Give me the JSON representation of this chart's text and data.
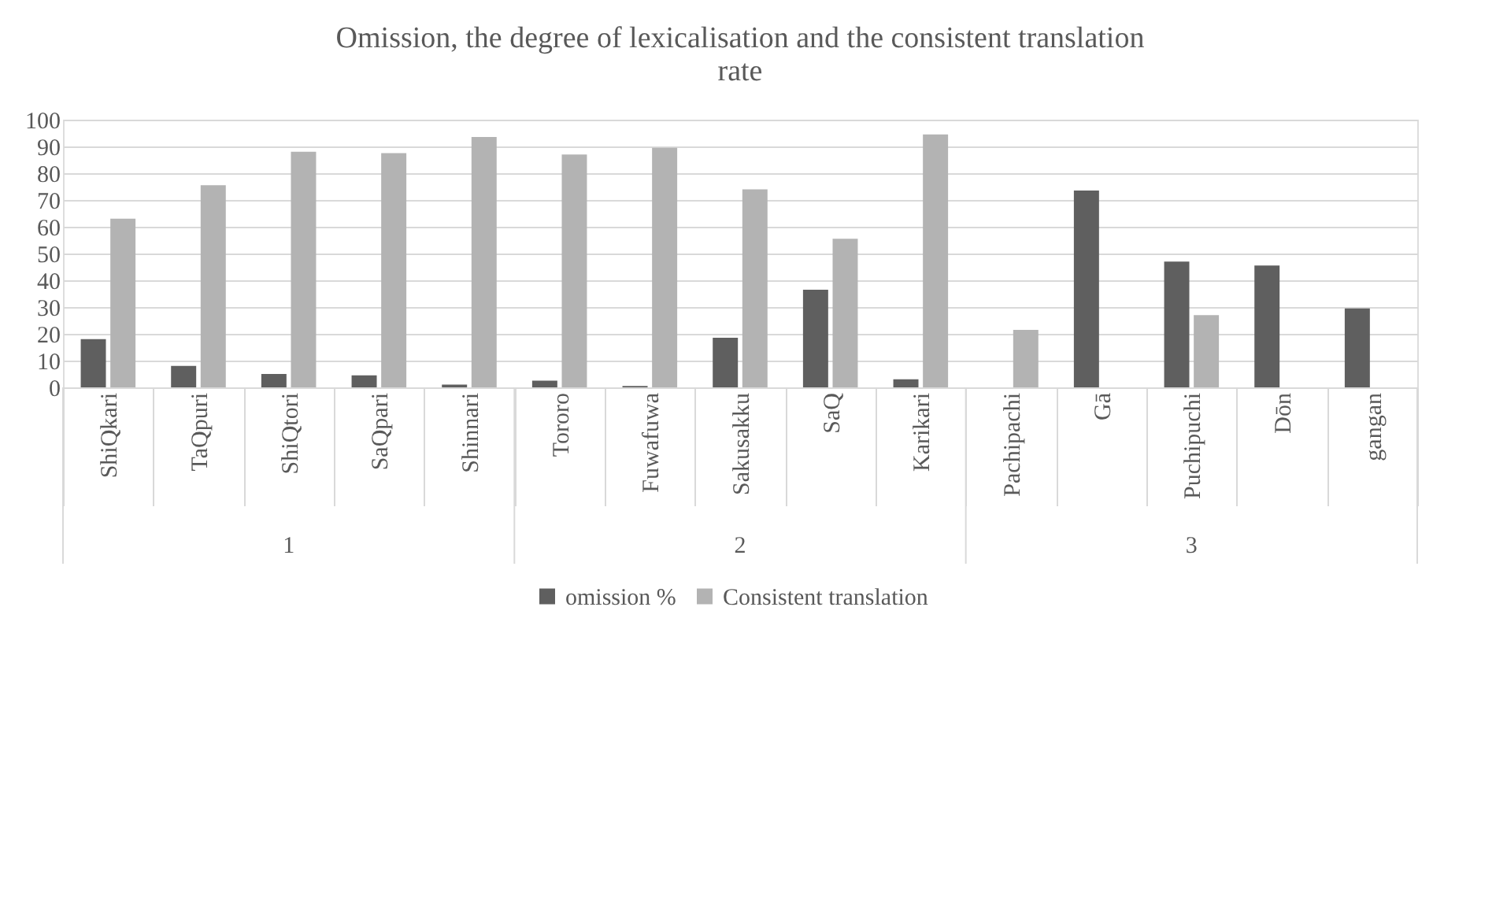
{
  "chart_data": {
    "type": "bar",
    "title": "Omission, the degree of lexicalisation and the consistent translation rate",
    "categories": [
      "ShiQkari",
      "TaQpuri",
      "ShiQtori",
      "SaQpari",
      "Shinnari",
      "Tororo",
      "Fuwafuwa",
      "Sakusakku",
      "SaQ",
      "Karikari",
      "Pachipachi",
      "Gā",
      "Puchipuchi",
      "Dōn",
      "gangan"
    ],
    "series": [
      {
        "name": "omission %",
        "color": "#5f5f5f",
        "values": [
          18,
          8,
          5,
          4.5,
          1,
          2.5,
          0.5,
          18.5,
          36.5,
          3,
          null,
          73.5,
          47,
          45.5,
          29.5
        ]
      },
      {
        "name": "Consistent translation",
        "color": "#b3b3b3",
        "values": [
          63,
          75.5,
          88,
          87.5,
          93.5,
          87,
          89.5,
          74,
          55.5,
          94.5,
          21.5,
          null,
          27,
          null,
          null
        ]
      }
    ],
    "annotations": [
      "1",
      "2",
      "3"
    ],
    "ylim": [
      0,
      100
    ],
    "yticks": [
      0,
      10,
      20,
      30,
      40,
      50,
      60,
      70,
      80,
      90,
      100
    ],
    "grid": "y",
    "legend": "bottom"
  }
}
